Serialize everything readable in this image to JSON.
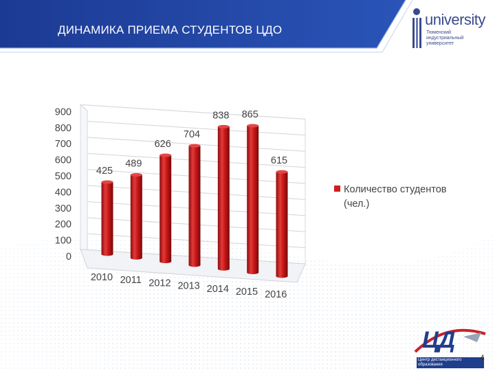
{
  "slide": {
    "title": "ДИНАМИКА ПРИЕМА СТУДЕНТОВ ЦДО",
    "number": "4"
  },
  "logo": {
    "wordmark": "university",
    "subtitle": "Тюменский индустриальный университет"
  },
  "cdo_logo": {
    "text": "ЦД",
    "subtitle": "Центр дистанционного образования"
  },
  "colors": {
    "header_blue": "#1f3f99",
    "bar_red": "#d01e1e",
    "axis_text": "#444444"
  },
  "chart_data": {
    "type": "bar",
    "categories": [
      "2010",
      "2011",
      "2012",
      "2013",
      "2014",
      "2015",
      "2016"
    ],
    "series": [
      {
        "name": "Количество студентов (чел.)",
        "values": [
          425,
          489,
          626,
          704,
          838,
          865,
          615
        ]
      }
    ],
    "data_labels": [
      "425",
      "489",
      "626",
      "704",
      "838",
      "865",
      "615"
    ],
    "y_ticks": [
      "0",
      "100",
      "200",
      "300",
      "400",
      "500",
      "600",
      "700",
      "800",
      "900"
    ],
    "ylim": [
      0,
      900
    ],
    "grid": true,
    "legend_position": "right",
    "style": "3d-cylinder"
  }
}
